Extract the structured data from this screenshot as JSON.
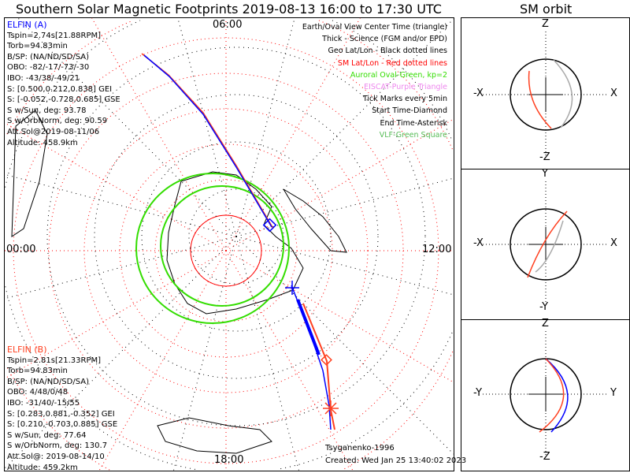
{
  "title": "Southern Solar Magnetic Footprints 2019-08-13 16:00 to 17:30 UTC",
  "sm_orbit_title": "SM orbit",
  "time_labels": {
    "top": "06:00",
    "bottom": "18:00",
    "left": "00:00",
    "right": "12:00"
  },
  "elfin_a": {
    "name": "ELFIN (A)",
    "color": "#0000ff",
    "lines": [
      "Tspin=2.74s[21.88RPM]",
      "Torb=94.83min",
      "B/SP: (NA/ND/SD/SA)",
      "OBO: -82/-17/-73/-30",
      "IBO: -43/38/-49/21",
      "S: [0.500,0.212,0.838] GEI",
      "S: [-0.052,-0.728,0.685] GSE",
      "S w/Sun, deg: 93.78",
      "S w/OrbNorm, deg: 90.59",
      "Att.Sol@2019-08-11/06",
      "Altitude: 458.9km"
    ]
  },
  "elfin_b": {
    "name": "ELFIN (B)",
    "color": "#ff4020",
    "lines": [
      "Tspin=2.81s[21.33RPM]",
      "Torb=94.83min",
      "B/SP: (NA/ND/SD/SA)",
      "OBO: 4/48/0/48",
      "IBO: -31/40/-15/55",
      "S: [0.283,0.881,-0.352] GEI",
      "S: [0.210,-0.703,0.885] GSE",
      "S w/Sun, deg: 77.64",
      "S w/OrbNorm, deg: 130.7",
      "Att.Sol@: 2019-08-14/10",
      "Altitude: 459.2km"
    ]
  },
  "legend": [
    {
      "text": "Earth/Oval View Center Time (triangle)",
      "color": "#000000"
    },
    {
      "text": "Thick - Science (FGM and/or EPD)",
      "color": "#000000"
    },
    {
      "text": "Geo Lat/Lon - Black dotted lines",
      "color": "#000000"
    },
    {
      "text": "SM Lat/Lon - Red dotted lines",
      "color": "#ff0000"
    },
    {
      "text": "Auroral Oval-Green, kp=2",
      "color": "#33dd00"
    },
    {
      "text": "EISCAT-Purple Triangle",
      "color": "#ee88ee"
    },
    {
      "text": "Tick Marks every 5min",
      "color": "#000000"
    },
    {
      "text": "Start Time-Diamond",
      "color": "#000000"
    },
    {
      "text": "End Time-Asterisk",
      "color": "#000000"
    },
    {
      "text": "VLF-Green Square",
      "color": "#55bb55"
    }
  ],
  "model": "Tsyganenko-1996",
  "created": "Created: Wed Jan 25 13:40:02 2023",
  "sm_panels": [
    {
      "top": "Z",
      "bottom": "-Z",
      "left": "-X",
      "right": "X"
    },
    {
      "top": "Y",
      "bottom": "-Y",
      "left": "-X",
      "right": "X"
    },
    {
      "top": "Z",
      "bottom": "-Z",
      "left": "-Y",
      "right": "Y"
    }
  ]
}
